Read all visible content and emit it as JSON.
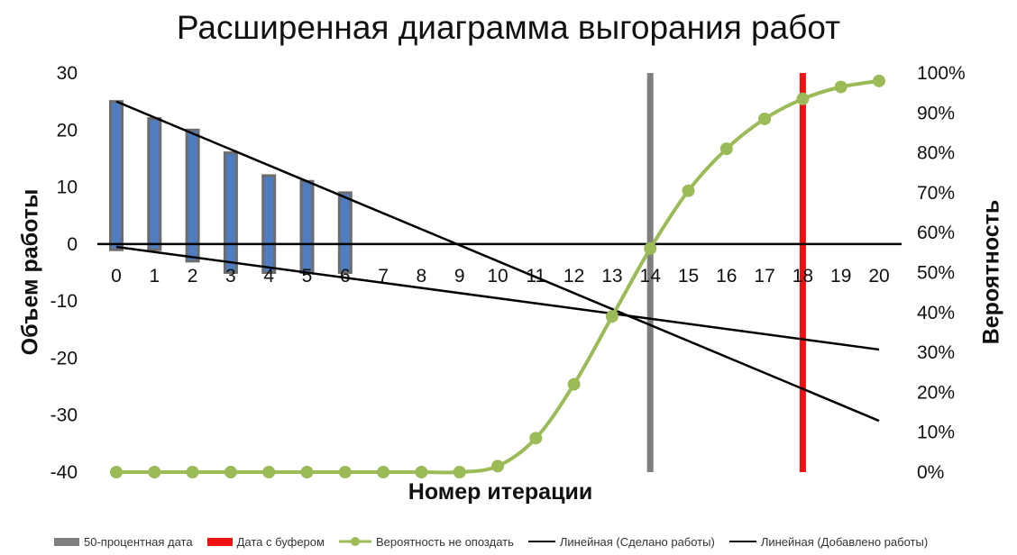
{
  "chart_data": {
    "title": "Расширенная диаграмма выгорания работ",
    "xlabel": "Номер итерации",
    "ylabel_left": "Объем работы",
    "ylabel_right": "Вероятность",
    "x_ticks": [
      "0",
      "1",
      "2",
      "3",
      "4",
      "5",
      "6",
      "7",
      "8",
      "9",
      "10",
      "11",
      "12",
      "13",
      "14",
      "15",
      "16",
      "17",
      "18",
      "19",
      "20"
    ],
    "y_left_ticks": [
      "30",
      "20",
      "10",
      "0",
      "-10",
      "-20",
      "-30",
      "-40"
    ],
    "y_left_lim": [
      -40,
      30
    ],
    "y_right_ticks": [
      "100%",
      "90%",
      "80%",
      "70%",
      "60%",
      "50%",
      "40%",
      "30%",
      "20%",
      "10%",
      "0%"
    ],
    "y_right_lim": [
      0,
      100
    ],
    "bars": [
      {
        "x": 0,
        "top": 25,
        "bottom": -1
      },
      {
        "x": 1,
        "top": 22,
        "bottom": -1
      },
      {
        "x": 2,
        "top": 20,
        "bottom": -3
      },
      {
        "x": 3,
        "top": 16,
        "bottom": -5
      },
      {
        "x": 4,
        "top": 12,
        "bottom": -5
      },
      {
        "x": 5,
        "top": 11,
        "bottom": -5
      },
      {
        "x": 6,
        "top": 9,
        "bottom": -5
      }
    ],
    "probability": {
      "name": "Вероятность не опоздать",
      "x": [
        0,
        1,
        2,
        3,
        4,
        5,
        6,
        7,
        8,
        9,
        10,
        11,
        12,
        13,
        14,
        15,
        16,
        17,
        18,
        19,
        20
      ],
      "values": [
        0,
        0,
        0,
        0,
        0,
        0,
        0,
        0,
        0,
        0,
        1.5,
        8.5,
        22,
        39,
        56,
        70.5,
        81,
        88.5,
        93.5,
        96.5,
        98
      ]
    },
    "trend_done": {
      "name": "Линейная (Сделано работы)",
      "x": [
        0,
        20
      ],
      "y": [
        25,
        -31
      ]
    },
    "trend_added": {
      "name": "Линейная (Добавлено работы)",
      "x": [
        0,
        20
      ],
      "y": [
        -0.5,
        -18.5
      ]
    },
    "vline_50": {
      "name": "50-процентная дата",
      "x": 14
    },
    "vline_buffer": {
      "name": "Дата с буфером",
      "x": 18
    },
    "type": "bar",
    "colors": {
      "bar_fill": "#4f7dc0",
      "bar_edge": "#6d6d6d",
      "probability": "#9bbb59",
      "vline_50": "#7f7f7f",
      "vline_buffer": "#ee1111",
      "trend": "#000000"
    },
    "legend_position": "bottom"
  }
}
